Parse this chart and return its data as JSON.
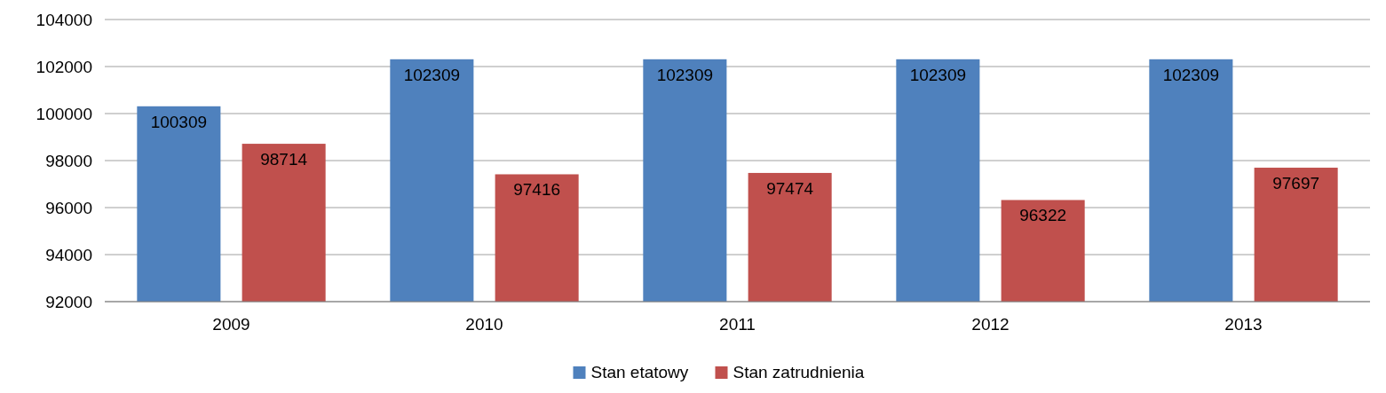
{
  "chart_data": {
    "type": "bar",
    "categories": [
      "2009",
      "2010",
      "2011",
      "2012",
      "2013"
    ],
    "series": [
      {
        "name": "Stan etatowy",
        "color": "#4f81bd",
        "values": [
          100309,
          102309,
          102309,
          102309,
          102309
        ]
      },
      {
        "name": "Stan zatrudnienia",
        "color": "#c0504d",
        "values": [
          98714,
          97416,
          97474,
          96322,
          97697
        ]
      }
    ],
    "ylim": [
      92000,
      104000
    ],
    "yticks": [
      92000,
      94000,
      96000,
      98000,
      100000,
      102000,
      104000
    ],
    "grid": "y",
    "legend": "bottom",
    "data_labels": true
  }
}
